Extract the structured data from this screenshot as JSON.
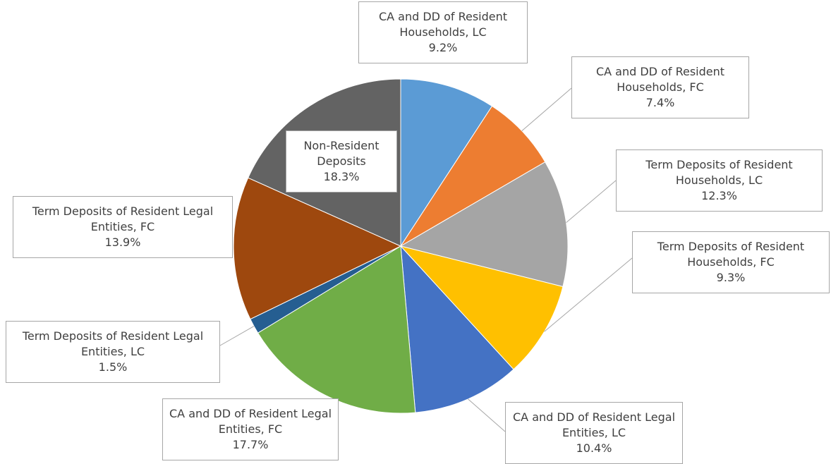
{
  "chart_data": {
    "type": "pie",
    "categories": [
      "CA and DD of Resident Households, LC",
      "CA and DD of Resident Households, FC",
      "Term Deposits of Resident Households, LC",
      "Term Deposits of Resident Households, FC",
      "CA and DD of Resident Legal Entities, LC",
      "CA and DD of Resident Legal Entities, FC",
      "Term Deposits of Resident Legal Entities, LC",
      "Term Deposits of Resident Legal Entities, FC",
      "Non-Resident Deposits"
    ],
    "values": [
      9.2,
      7.4,
      12.3,
      9.3,
      10.4,
      17.7,
      1.5,
      13.9,
      18.3
    ],
    "value_labels": [
      "9.2%",
      "7.4%",
      "12.3%",
      "9.3%",
      "10.4%",
      "17.7%",
      "1.5%",
      "13.9%",
      "18.3%"
    ],
    "colors": [
      "#5b9bd5",
      "#ed7d31",
      "#a5a5a5",
      "#ffc000",
      "#4472c4",
      "#70ad47",
      "#255e91",
      "#9e480e",
      "#636363"
    ]
  }
}
